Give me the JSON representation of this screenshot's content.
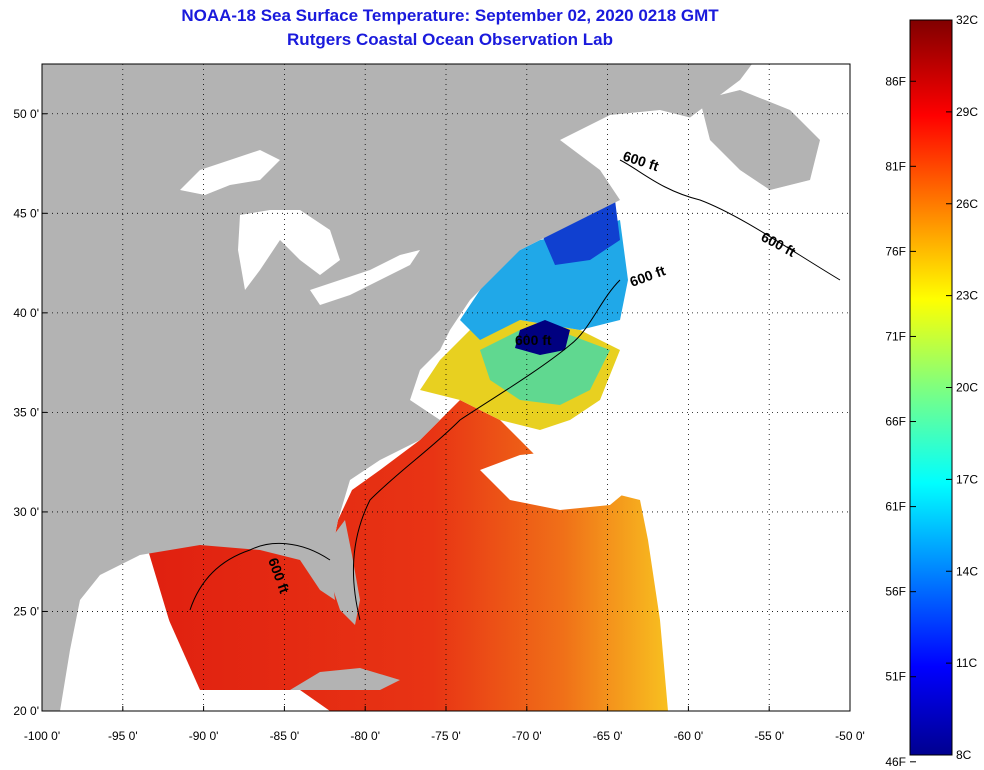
{
  "title_line1": "NOAA-18 Sea Surface Temperature:  September 02, 2020 0218 GMT",
  "title_line2": "Rutgers Coastal Ocean Observation Lab",
  "map": {
    "lat_labels": [
      "50 0'",
      "45 0'",
      "40 0'",
      "35 0'",
      "30 0'",
      "25 0'",
      "20 0'"
    ],
    "lon_labels": [
      "-100 0'",
      "-95 0'",
      "-90 0'",
      "-85 0'",
      "-80 0'",
      "-75 0'",
      "-70 0'",
      "-65 0'",
      "-60 0'",
      "-55 0'",
      "-50 0'"
    ],
    "lat_values": [
      50,
      45,
      40,
      35,
      30,
      25,
      20
    ],
    "lon_values": [
      -100,
      -95,
      -90,
      -85,
      -80,
      -75,
      -70,
      -65,
      -60,
      -55,
      -50
    ],
    "lon_range": [
      -100,
      -50
    ],
    "lat_range": [
      20,
      52.5
    ],
    "contour_labels": [
      "600 ft",
      "600 ft",
      "600 ft",
      "600 ft",
      "600 ft"
    ],
    "land_color": "#b3b3b3",
    "no_data_color": "#ffffff"
  },
  "colorbar": {
    "celsius_labels": [
      "32C",
      "29C",
      "26C",
      "23C",
      "20C",
      "17C",
      "14C",
      "11C",
      "8C"
    ],
    "fahrenheit_labels": [
      "86F",
      "81F",
      "76F",
      "71F",
      "66F",
      "61F",
      "56F",
      "51F",
      "46F"
    ],
    "celsius_values": [
      32,
      29,
      26,
      23,
      20,
      17,
      14,
      11,
      8
    ],
    "fahrenheit_values": [
      86,
      81,
      76,
      71,
      66,
      61,
      56,
      51,
      46
    ],
    "range_c": [
      8,
      32
    ],
    "colormap": "jet"
  }
}
